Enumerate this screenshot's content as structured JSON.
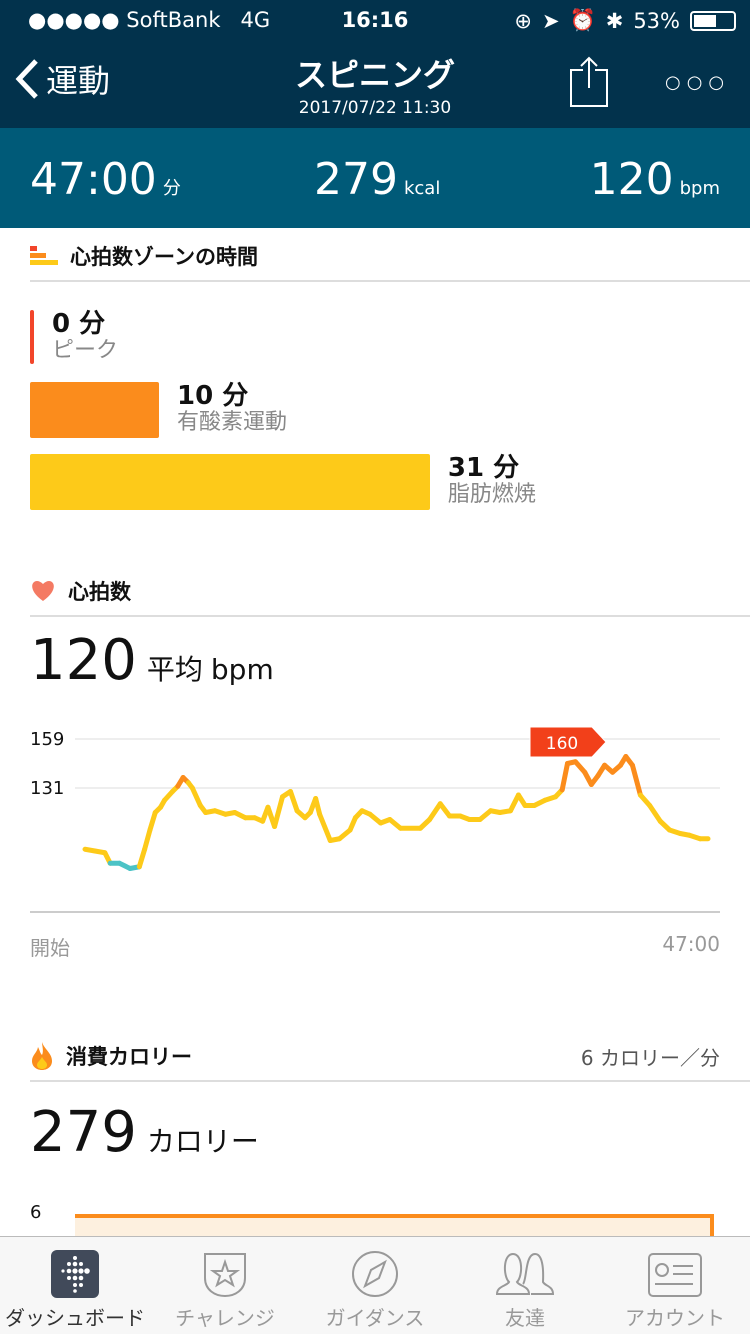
{
  "status_bar": {
    "carrier": "●●●●● SoftBank",
    "network": "4G",
    "time": "16:16",
    "battery": "53%",
    "battery_level": 0.53
  },
  "nav": {
    "back_label": "運動",
    "title": "スピニング",
    "datetime": "2017/07/22 11:30"
  },
  "summary": {
    "duration": "47:00",
    "duration_unit": "分",
    "calories": "279",
    "calories_unit": "kcal",
    "heart_rate": "120",
    "heart_rate_unit": "bpm"
  },
  "zones": {
    "title": "心拍数ゾーンの時間",
    "items": [
      {
        "minutes": 0,
        "value": "0 分",
        "name": "ピーク",
        "color": "#f2452a"
      },
      {
        "minutes": 10,
        "value": "10 分",
        "name": "有酸素運動",
        "color": "#fb8c1c"
      },
      {
        "minutes": 31,
        "value": "31 分",
        "name": "脂肪燃焼",
        "color": "#fdca19"
      }
    ]
  },
  "heart": {
    "title": "心拍数",
    "avg_value": "120",
    "avg_label": "平均",
    "avg_unit": "bpm"
  },
  "chart_data": {
    "type": "line",
    "x_start_label": "開始",
    "x_end_label": "47:00",
    "y_ticks": [
      "159",
      "131"
    ],
    "y_tick_values": [
      159,
      131
    ],
    "grid": true,
    "peak_label": "160",
    "xlim": [
      0,
      47
    ],
    "x": [
      0,
      0.75,
      1.5,
      1.9,
      2.6,
      3.4,
      4.1,
      4.5,
      4.9,
      5.3,
      5.7,
      6.0,
      6.6,
      7.0,
      7.4,
      7.8,
      8.1,
      8.7,
      9.1,
      9.8,
      10.6,
      11.3,
      12.1,
      12.8,
      13.4,
      13.8,
      14.3,
      14.9,
      15.5,
      16.0,
      16.6,
      17.0,
      17.4,
      17.7,
      18.5,
      19.2,
      20.0,
      20.4,
      20.9,
      21.5,
      22.3,
      23.0,
      23.8,
      25.3,
      26.0,
      26.8,
      27.5,
      28.3,
      29.0,
      29.8,
      30.6,
      31.3,
      32.1,
      32.7,
      33.2,
      33.9,
      34.7,
      35.5,
      36.0,
      36.4,
      37.0,
      37.7,
      38.2,
      38.7,
      39.2,
      39.8,
      40.4,
      40.8,
      41.3,
      41.9,
      42.6,
      43.4,
      44.1,
      44.9,
      45.6,
      46.4,
      47
    ],
    "bpm": [
      96,
      95,
      94,
      88,
      88,
      85,
      86,
      96,
      107,
      117,
      120,
      124,
      129,
      132,
      137,
      134,
      131,
      121,
      117,
      118,
      116,
      117,
      114,
      114,
      112,
      120,
      109,
      126,
      129,
      118,
      114,
      117,
      125,
      116,
      101,
      102,
      107,
      114,
      118,
      116,
      111,
      113,
      108,
      108,
      113,
      122,
      115,
      115,
      113,
      113,
      118,
      117,
      118,
      127,
      121,
      121,
      124,
      126,
      130,
      145,
      146,
      140,
      133,
      138,
      144,
      140,
      144,
      149,
      144,
      127,
      121,
      112,
      107,
      105,
      104,
      102,
      102
    ],
    "colors": {
      "low": "#4cc3c6",
      "fat_burn": "#fdca19",
      "cardio": "#fb8c1c"
    }
  },
  "calories": {
    "title": "消費カロリー",
    "rate": "6 カロリー／分",
    "total": "279",
    "total_unit": "カロリー",
    "y_tick": "6"
  },
  "tabs": [
    {
      "label": "ダッシュボード",
      "icon": "fitbit-dots-icon",
      "active": true
    },
    {
      "label": "チャレンジ",
      "icon": "star-badge-icon"
    },
    {
      "label": "ガイダンス",
      "icon": "compass-icon"
    },
    {
      "label": "友達",
      "icon": "friends-icon"
    },
    {
      "label": "アカウント",
      "icon": "account-card-icon"
    }
  ]
}
